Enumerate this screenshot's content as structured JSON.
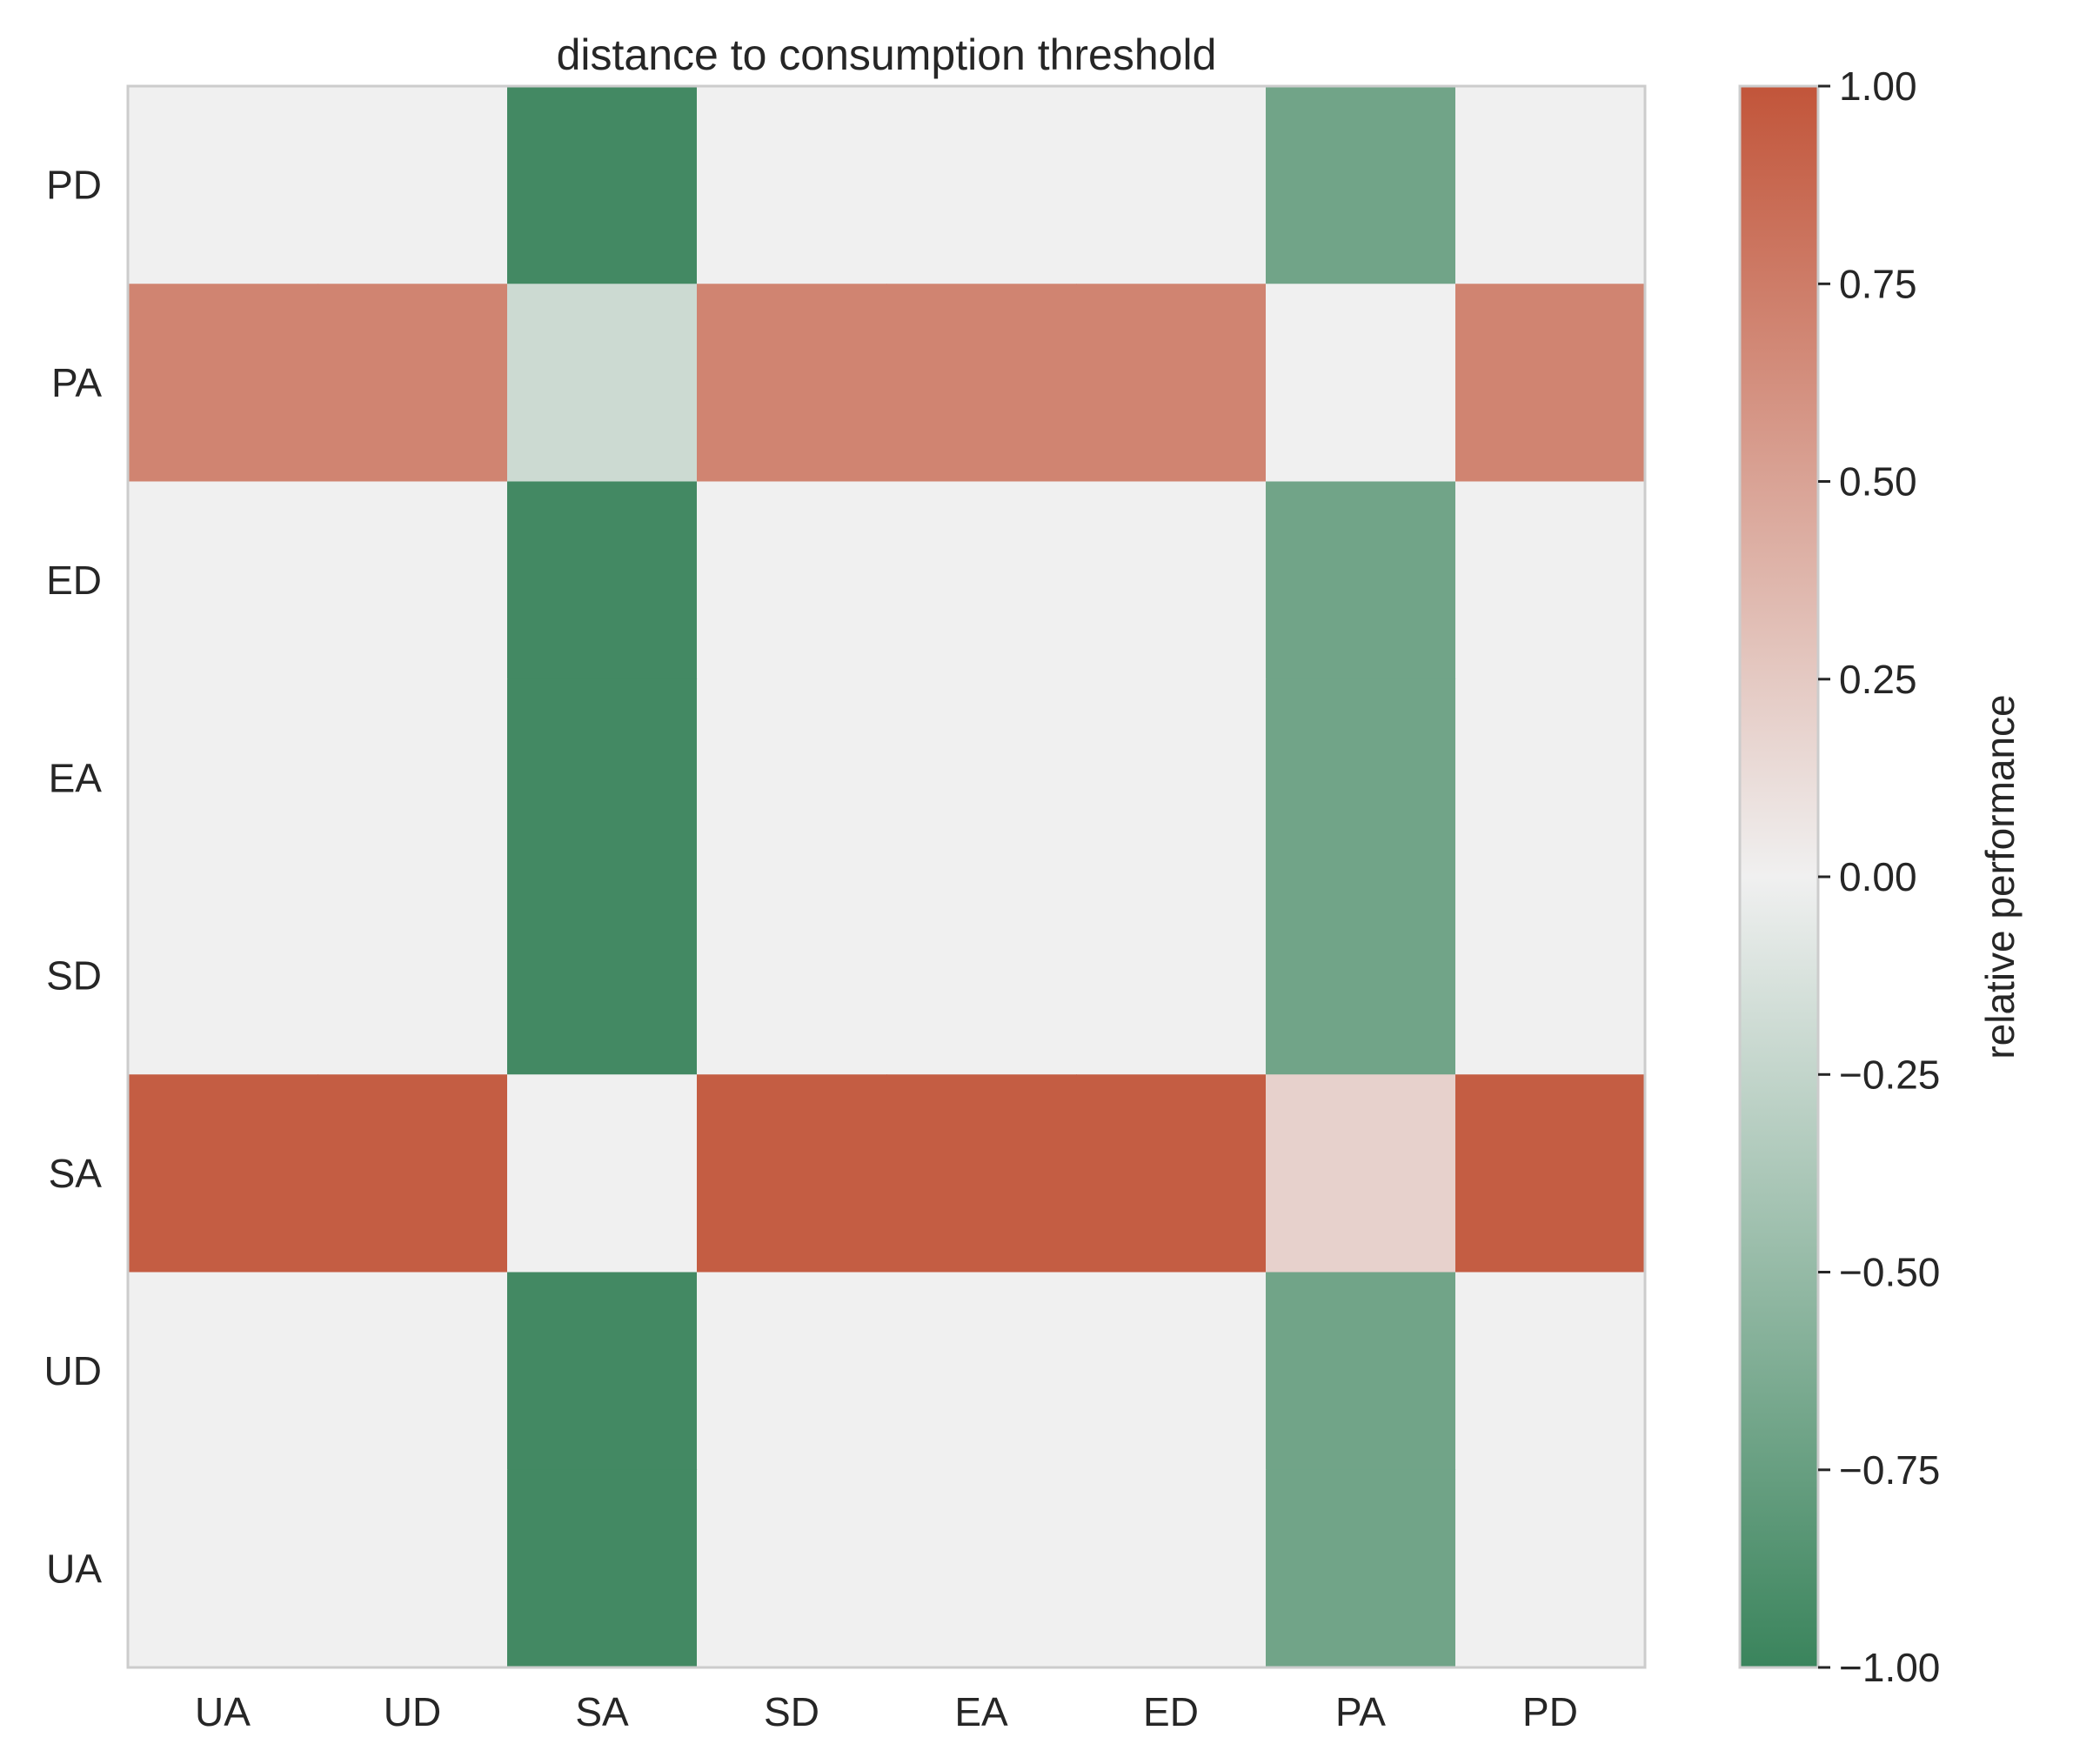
{
  "chart_data": {
    "type": "heatmap",
    "title": "distance to consumption threshold",
    "x_categories": [
      "UA",
      "UD",
      "SA",
      "SD",
      "EA",
      "ED",
      "PA",
      "PD"
    ],
    "y_categories": [
      "PD",
      "PA",
      "ED",
      "EA",
      "SD",
      "SA",
      "UD",
      "UA"
    ],
    "values": [
      [
        0,
        0,
        -0.95,
        0,
        0,
        0,
        -0.7,
        0
      ],
      [
        0.7,
        0.7,
        -0.2,
        0.7,
        0.7,
        0.7,
        0,
        0.7
      ],
      [
        0,
        0,
        -0.95,
        0,
        0,
        0,
        -0.7,
        0
      ],
      [
        0,
        0,
        -0.95,
        0,
        0,
        0,
        -0.7,
        0
      ],
      [
        0,
        0,
        -0.95,
        0,
        0,
        0,
        -0.7,
        0
      ],
      [
        0.95,
        0.95,
        0,
        0.95,
        0.95,
        0.95,
        0.2,
        0.95
      ],
      [
        0,
        0,
        -0.95,
        0,
        0,
        0,
        -0.7,
        0
      ],
      [
        0,
        0,
        -0.95,
        0,
        0,
        0,
        -0.7,
        0
      ]
    ],
    "colorbar": {
      "label": "relative performance",
      "range": [
        -1.0,
        1.0
      ],
      "ticks": [
        1.0,
        0.75,
        0.5,
        0.25,
        0.0,
        -0.25,
        -0.5,
        -0.75,
        -1.0
      ],
      "tick_labels": [
        "1.00",
        "0.75",
        "0.50",
        "0.25",
        "0.00",
        "−0.25",
        "−0.50",
        "−0.75",
        "−1.00"
      ],
      "colors": {
        "negative": "#3a845c",
        "neutral": "#f0f0f0",
        "positive": "#c2553a"
      }
    },
    "grid": false
  }
}
